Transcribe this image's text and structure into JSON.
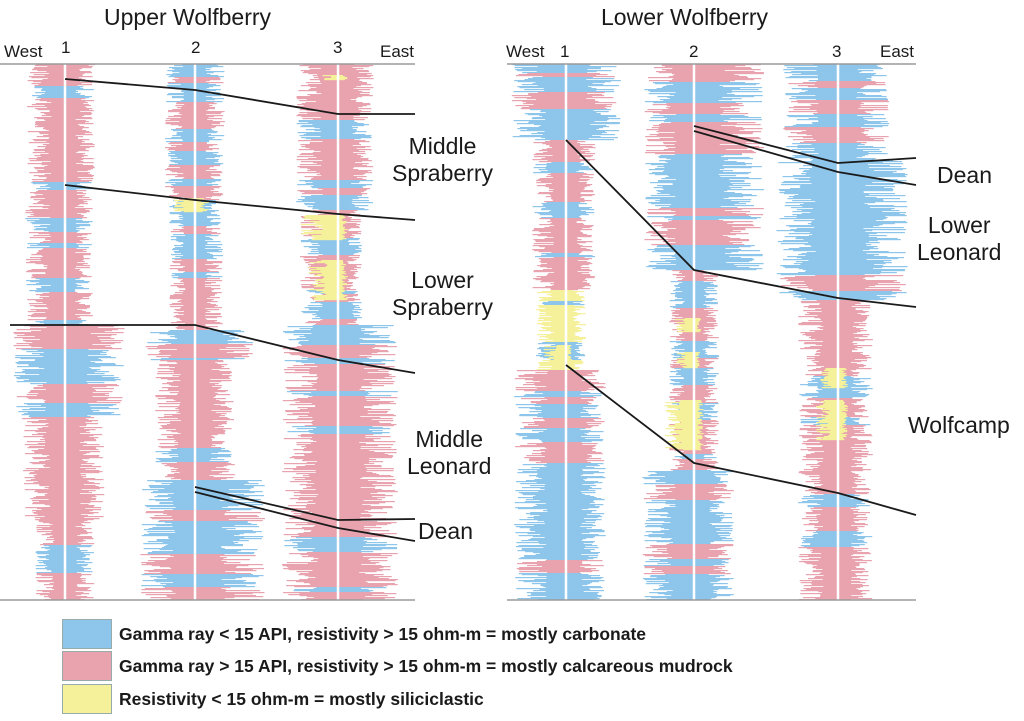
{
  "panels": [
    {
      "title": "Upper Wolfberry",
      "west": "West",
      "east": "East",
      "wells": [
        "1",
        "2",
        "3"
      ],
      "units": [
        {
          "line1": "Middle",
          "line2": "Spraberry"
        },
        {
          "line1": "Lower",
          "line2": "Spraberry"
        },
        {
          "line1": "Middle",
          "line2": "Leonard"
        },
        {
          "line1": "Dean",
          "line2": ""
        }
      ]
    },
    {
      "title": "Lower Wolfberry",
      "west": "West",
      "east": "East",
      "wells": [
        "1",
        "2",
        "3"
      ],
      "units": [
        {
          "line1": "Dean",
          "line2": ""
        },
        {
          "line1": "Lower",
          "line2": "Leonard"
        },
        {
          "line1": "Wolfcamp",
          "line2": ""
        }
      ]
    }
  ],
  "legend": [
    {
      "color": "#8ec5ea",
      "text": "Gamma ray < 15 API, resistivity > 15 ohm-m = mostly carbonate"
    },
    {
      "color": "#e8a3ae",
      "text": "Gamma ray > 15 API, resistivity > 15 ohm-m = mostly calcareous mudrock"
    },
    {
      "color": "#f5f19a",
      "text": "Resistivity < 15 ohm-m = mostly siliciclastic"
    }
  ],
  "colors": {
    "carbonate": "#8ec5ea",
    "mudrock": "#e8a3ae",
    "siliciclastic": "#f5f19a",
    "correlation_line": "#1a1a1a"
  }
}
